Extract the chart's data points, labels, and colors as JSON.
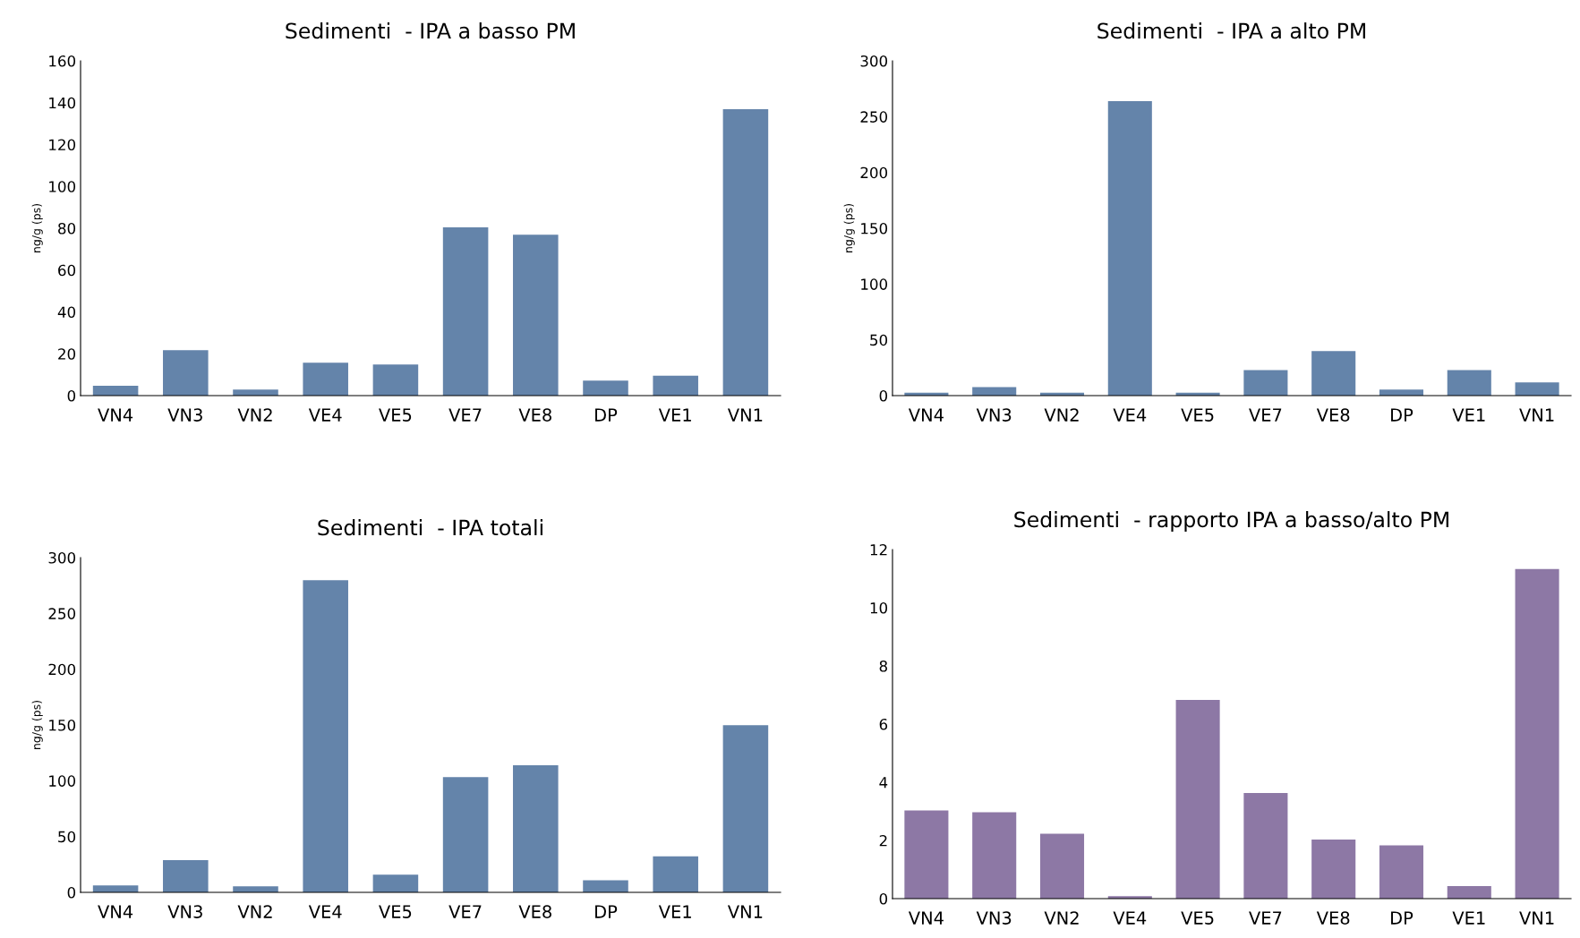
{
  "chart_data": [
    {
      "type": "bar",
      "title": "Sedimenti  - IPA a basso PM",
      "ylabel": "ng/g (ps)",
      "categories": [
        "VN4",
        "VN3",
        "VN2",
        "VE4",
        "VE5",
        "VE7",
        "VE8",
        "DP",
        "VE1",
        "VN1"
      ],
      "values": [
        4.3,
        21.3,
        2.4,
        15.3,
        14.4,
        80,
        76.5,
        6.7,
        9.1,
        136.5
      ],
      "color": "#4a6f9c",
      "ylim": [
        0,
        160
      ],
      "yticks": [
        0,
        20,
        40,
        60,
        80,
        100,
        120,
        140,
        160
      ],
      "grid": false
    },
    {
      "type": "bar",
      "title": "Sedimenti  - IPA a alto PM",
      "ylabel": "ng/g (ps)",
      "categories": [
        "VN4",
        "VN3",
        "VN2",
        "VE4",
        "VE5",
        "VE7",
        "VE8",
        "DP",
        "VE1",
        "VN1"
      ],
      "values": [
        1.8,
        6.8,
        1.8,
        263,
        1.8,
        22,
        39,
        4.5,
        22,
        11
      ],
      "color": "#4a6f9c",
      "ylim": [
        0,
        300
      ],
      "yticks": [
        0,
        50,
        100,
        150,
        200,
        250,
        300
      ],
      "grid": false
    },
    {
      "type": "bar",
      "title": "Sedimenti  - IPA totali",
      "ylabel": "ng/g (ps)",
      "categories": [
        "VN4",
        "VN3",
        "VN2",
        "VE4",
        "VE5",
        "VE7",
        "VE8",
        "DP",
        "VE1",
        "VN1"
      ],
      "values": [
        5.4,
        28,
        4.5,
        279,
        15,
        102.5,
        113,
        10,
        31.5,
        149
      ],
      "color": "#4a6f9c",
      "ylim": [
        0,
        300
      ],
      "yticks": [
        0,
        50,
        100,
        150,
        200,
        250,
        300
      ],
      "grid": false
    },
    {
      "type": "bar",
      "title": "Sedimenti  - rapporto IPA a basso/alto PM",
      "categories": [
        "VN4",
        "VN3",
        "VN2",
        "VE4",
        "VE5",
        "VE7",
        "VE8",
        "DP",
        "VE1",
        "VN1"
      ],
      "values": [
        3.0,
        2.94,
        2.2,
        0.05,
        6.8,
        3.6,
        2.0,
        1.8,
        0.4,
        11.3
      ],
      "color": "#7a6196",
      "ylim": [
        0,
        12
      ],
      "yticks": [
        0,
        2,
        4,
        6,
        8,
        10,
        12
      ],
      "grid": false
    }
  ]
}
